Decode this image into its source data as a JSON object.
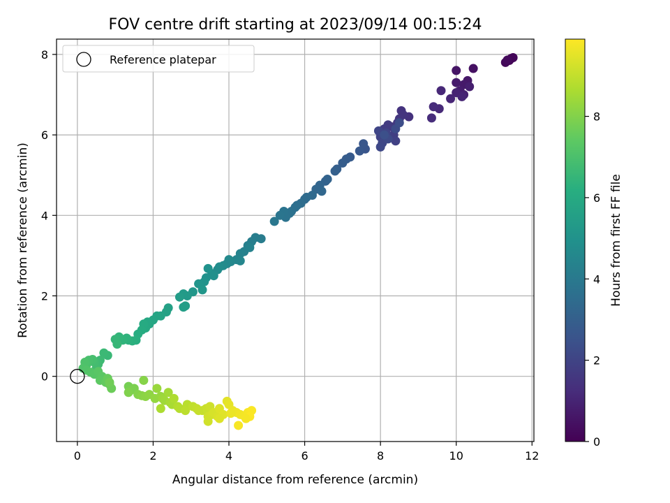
{
  "chart_data": {
    "type": "scatter",
    "title": "FOV centre drift starting at 2023/09/14 00:15:24",
    "xlabel": "Angular distance from reference (arcmin)",
    "ylabel": "Rotation from reference (arcmin)",
    "xlim": [
      -0.55,
      12.05
    ],
    "ylim": [
      -1.62,
      8.38
    ],
    "xticks": [
      "0",
      "2",
      "4",
      "6",
      "8",
      "10",
      "12"
    ],
    "xtick_values": [
      0,
      2,
      4,
      6,
      8,
      10,
      12
    ],
    "yticks": [
      "0",
      "2",
      "4",
      "6",
      "8"
    ],
    "ytick_values": [
      0,
      2,
      4,
      6,
      8
    ],
    "grid": true,
    "legend": {
      "placement": "top-left",
      "entries": [
        "Reference platepar"
      ]
    },
    "colorbar": {
      "label": "Hours from first FF file",
      "colormap": "viridis",
      "range": [
        0,
        9.9
      ],
      "ticks": [
        "0",
        "2",
        "4",
        "6",
        "8"
      ],
      "tick_values": [
        0,
        2,
        4,
        6,
        8
      ]
    },
    "reference_point": {
      "x": 0,
      "y": 0,
      "marker": "open-circle",
      "color": "#000000"
    },
    "series": [
      {
        "points": [
          [
            11.45,
            7.9,
            0.05
          ],
          [
            11.4,
            7.85,
            0.1
          ],
          [
            11.5,
            7.92,
            0.15
          ],
          [
            11.3,
            7.8,
            0.2
          ],
          [
            11.35,
            7.86,
            0.25
          ],
          [
            10.45,
            7.65,
            0.45
          ],
          [
            10.0,
            7.6,
            0.55
          ],
          [
            10.3,
            7.35,
            0.65
          ],
          [
            10.2,
            7.25,
            0.7
          ],
          [
            10.0,
            7.3,
            0.75
          ],
          [
            10.1,
            7.1,
            0.8
          ],
          [
            10.35,
            7.2,
            0.85
          ],
          [
            10.2,
            7.0,
            0.9
          ],
          [
            10.0,
            7.05,
            0.95
          ],
          [
            10.15,
            6.95,
            1.0
          ],
          [
            9.85,
            6.9,
            1.05
          ],
          [
            9.6,
            7.1,
            1.1
          ],
          [
            9.55,
            6.65,
            1.15
          ],
          [
            9.4,
            6.7,
            1.2
          ],
          [
            9.35,
            6.42,
            1.25
          ],
          [
            8.75,
            6.45,
            1.4
          ],
          [
            8.55,
            6.6,
            1.45
          ],
          [
            8.6,
            6.5,
            1.5
          ],
          [
            8.5,
            6.4,
            1.55
          ],
          [
            8.45,
            6.3,
            1.6
          ],
          [
            8.3,
            6.2,
            1.65
          ],
          [
            8.2,
            6.25,
            1.7
          ],
          [
            8.1,
            6.15,
            1.75
          ],
          [
            8.35,
            6.0,
            1.8
          ],
          [
            8.25,
            5.95,
            1.85
          ],
          [
            8.4,
            5.85,
            1.9
          ],
          [
            8.0,
            5.95,
            1.95
          ],
          [
            8.15,
            6.05,
            2.0
          ],
          [
            7.95,
            6.1,
            2.05
          ],
          [
            8.05,
            5.8,
            2.1
          ],
          [
            8.0,
            5.7,
            2.15
          ],
          [
            8.2,
            5.9,
            2.2
          ],
          [
            8.4,
            6.15,
            2.25
          ],
          [
            8.5,
            6.3,
            2.3
          ],
          [
            8.1,
            6.0,
            2.4
          ],
          [
            7.6,
            5.65,
            2.6
          ],
          [
            7.55,
            5.78,
            2.65
          ],
          [
            7.45,
            5.6,
            2.7
          ],
          [
            7.2,
            5.45,
            2.8
          ],
          [
            7.1,
            5.4,
            2.85
          ],
          [
            7.0,
            5.3,
            2.9
          ],
          [
            6.85,
            5.15,
            2.95
          ],
          [
            6.8,
            5.1,
            3.0
          ],
          [
            6.55,
            4.85,
            3.1
          ],
          [
            6.6,
            4.9,
            3.15
          ],
          [
            6.4,
            4.75,
            3.2
          ],
          [
            6.3,
            4.65,
            3.25
          ],
          [
            6.45,
            4.6,
            3.3
          ],
          [
            6.2,
            4.5,
            3.35
          ],
          [
            6.0,
            4.4,
            3.4
          ],
          [
            6.05,
            4.45,
            3.45
          ],
          [
            5.9,
            4.3,
            3.5
          ],
          [
            5.8,
            4.25,
            3.55
          ],
          [
            5.75,
            4.2,
            3.6
          ],
          [
            5.65,
            4.1,
            3.65
          ],
          [
            5.6,
            4.05,
            3.7
          ],
          [
            5.5,
            3.95,
            3.75
          ],
          [
            5.45,
            4.1,
            3.8
          ],
          [
            5.35,
            4.0,
            3.85
          ],
          [
            5.2,
            3.85,
            3.9
          ],
          [
            4.85,
            3.42,
            4.1
          ],
          [
            4.7,
            3.45,
            4.15
          ],
          [
            4.6,
            3.35,
            4.2
          ],
          [
            4.5,
            3.25,
            4.25
          ],
          [
            4.4,
            3.1,
            4.3
          ],
          [
            4.55,
            3.2,
            4.35
          ],
          [
            4.3,
            3.05,
            4.4
          ],
          [
            4.2,
            2.9,
            4.45
          ],
          [
            4.3,
            2.87,
            4.5
          ],
          [
            4.05,
            2.85,
            4.55
          ],
          [
            3.95,
            2.8,
            4.6
          ],
          [
            4.0,
            2.9,
            4.65
          ],
          [
            3.85,
            2.75,
            4.7
          ],
          [
            3.7,
            2.65,
            4.75
          ],
          [
            3.75,
            2.72,
            4.8
          ],
          [
            3.55,
            2.55,
            4.85
          ],
          [
            3.6,
            2.5,
            4.9
          ],
          [
            3.4,
            2.45,
            4.95
          ],
          [
            3.45,
            2.68,
            5.0
          ],
          [
            3.35,
            2.35,
            5.05
          ],
          [
            3.2,
            2.3,
            5.1
          ],
          [
            3.3,
            2.15,
            5.15
          ],
          [
            3.05,
            2.1,
            5.2
          ],
          [
            2.9,
            2.0,
            5.3
          ],
          [
            2.8,
            2.05,
            5.35
          ],
          [
            2.7,
            1.97,
            5.4
          ],
          [
            2.85,
            1.75,
            5.45
          ],
          [
            2.8,
            1.72,
            5.5
          ],
          [
            2.4,
            1.7,
            5.6
          ],
          [
            2.35,
            1.6,
            5.65
          ],
          [
            2.2,
            1.5,
            5.7
          ],
          [
            2.1,
            1.5,
            5.75
          ],
          [
            2.0,
            1.4,
            5.8
          ],
          [
            1.9,
            1.3,
            5.85
          ],
          [
            1.85,
            1.35,
            5.9
          ],
          [
            1.8,
            1.2,
            5.95
          ],
          [
            1.75,
            1.3,
            6.0
          ],
          [
            1.7,
            1.15,
            6.05
          ],
          [
            1.6,
            1.05,
            6.1
          ],
          [
            1.55,
            0.9,
            6.2
          ],
          [
            1.45,
            0.88,
            6.25
          ],
          [
            1.35,
            0.9,
            6.3
          ],
          [
            1.3,
            0.95,
            6.35
          ],
          [
            1.2,
            0.9,
            6.4
          ],
          [
            1.1,
            0.98,
            6.45
          ],
          [
            1.0,
            0.92,
            6.5
          ],
          [
            1.05,
            0.8,
            6.55
          ],
          [
            0.8,
            0.52,
            6.6
          ],
          [
            0.7,
            0.58,
            6.65
          ],
          [
            0.6,
            0.4,
            6.7
          ],
          [
            0.55,
            0.3,
            6.75
          ],
          [
            0.5,
            0.2,
            6.8
          ],
          [
            0.45,
            0.35,
            6.85
          ],
          [
            0.4,
            0.42,
            6.9
          ],
          [
            0.3,
            0.4,
            6.95
          ],
          [
            0.25,
            0.3,
            7.0
          ],
          [
            0.2,
            0.35,
            7.05
          ],
          [
            0.15,
            0.2,
            7.1
          ],
          [
            0.25,
            0.15,
            7.15
          ],
          [
            0.35,
            0.1,
            7.2
          ],
          [
            0.45,
            0.05,
            7.25
          ],
          [
            0.55,
            0.12,
            7.3
          ],
          [
            0.65,
            0.0,
            7.35
          ],
          [
            0.6,
            -0.1,
            7.4
          ],
          [
            0.75,
            -0.15,
            7.5
          ],
          [
            0.8,
            -0.05,
            7.55
          ],
          [
            0.85,
            -0.2,
            7.6
          ],
          [
            0.9,
            -0.3,
            7.65
          ],
          [
            0.85,
            -0.15,
            7.7
          ],
          [
            1.35,
            -0.25,
            7.8
          ],
          [
            1.4,
            -0.35,
            7.85
          ],
          [
            1.5,
            -0.3,
            7.9
          ],
          [
            1.35,
            -0.4,
            7.95
          ],
          [
            1.6,
            -0.45,
            8.0
          ],
          [
            1.75,
            -0.1,
            8.05
          ],
          [
            1.7,
            -0.48,
            8.1
          ],
          [
            1.8,
            -0.5,
            8.15
          ],
          [
            1.9,
            -0.45,
            8.2
          ],
          [
            2.05,
            -0.55,
            8.25
          ],
          [
            2.2,
            -0.5,
            8.3
          ],
          [
            2.1,
            -0.3,
            8.35
          ],
          [
            2.25,
            -0.55,
            8.4
          ],
          [
            2.3,
            -0.6,
            8.45
          ],
          [
            2.4,
            -0.4,
            8.5
          ],
          [
            2.45,
            -0.65,
            8.55
          ],
          [
            2.5,
            -0.7,
            8.6
          ],
          [
            2.2,
            -0.8,
            8.65
          ],
          [
            2.55,
            -0.55,
            8.7
          ],
          [
            2.65,
            -0.75,
            8.75
          ],
          [
            2.7,
            -0.8,
            8.8
          ],
          [
            2.9,
            -0.7,
            8.85
          ],
          [
            2.85,
            -0.85,
            8.9
          ],
          [
            3.05,
            -0.75,
            8.95
          ],
          [
            3.15,
            -0.8,
            9.0
          ],
          [
            3.3,
            -0.85,
            9.05
          ],
          [
            3.4,
            -0.8,
            9.1
          ],
          [
            3.5,
            -0.75,
            9.15
          ],
          [
            3.45,
            -1.0,
            9.2
          ],
          [
            3.55,
            -0.95,
            9.25
          ],
          [
            3.6,
            -0.9,
            9.3
          ],
          [
            3.7,
            -1.0,
            9.35
          ],
          [
            3.75,
            -0.8,
            9.4
          ],
          [
            3.85,
            -0.95,
            9.45
          ],
          [
            3.95,
            -0.62,
            9.5
          ],
          [
            4.0,
            -0.7,
            9.55
          ],
          [
            4.1,
            -0.85,
            9.6
          ],
          [
            4.2,
            -0.9,
            9.65
          ],
          [
            4.3,
            -0.95,
            9.7
          ],
          [
            4.4,
            -0.98,
            9.75
          ],
          [
            4.5,
            -0.9,
            9.8
          ],
          [
            4.6,
            -0.85,
            9.85
          ],
          [
            4.55,
            -1.0,
            9.88
          ],
          [
            4.25,
            -1.22,
            9.8
          ],
          [
            3.45,
            -1.12,
            9.2
          ],
          [
            3.75,
            -1.05,
            9.4
          ],
          [
            3.2,
            -0.85,
            9.05
          ],
          [
            4.05,
            -0.92,
            9.62
          ],
          [
            4.45,
            -1.05,
            9.78
          ]
        ]
      }
    ]
  }
}
